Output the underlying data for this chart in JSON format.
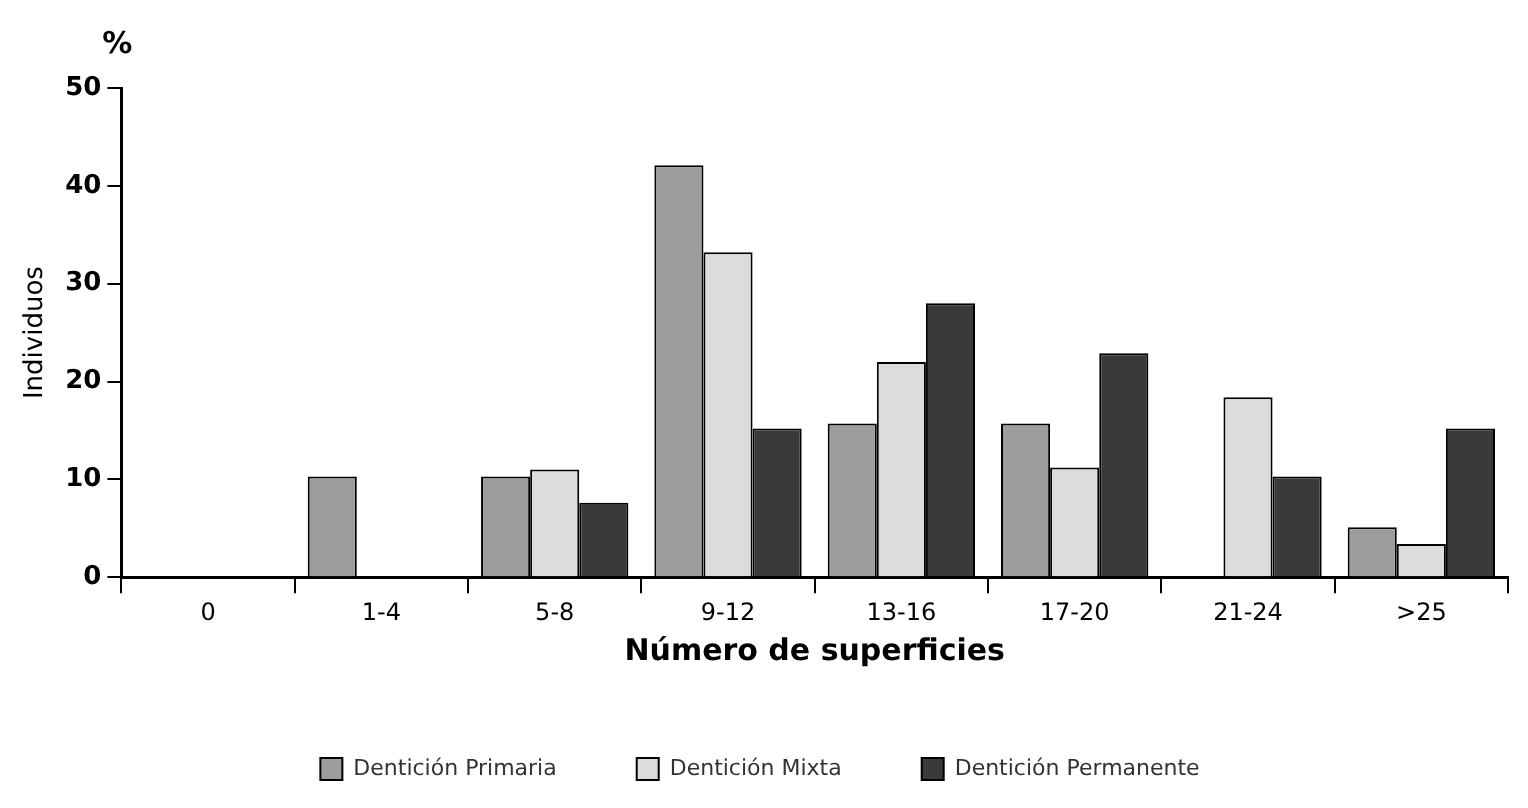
{
  "chart_data": {
    "type": "bar",
    "xlabel": "Número de superficies",
    "ylabel": "Individuos",
    "annotations": [
      "%"
    ],
    "categories": [
      "0",
      "1-4",
      "5-8",
      "9-12",
      "13-16",
      "17-20",
      "21-24",
      ">25"
    ],
    "series": [
      {
        "name": "Dentición Primaria",
        "color": "#9d9d9d",
        "values": [
          0,
          10.3,
          10.3,
          42.1,
          15.7,
          15.7,
          0,
          5.1
        ]
      },
      {
        "name": "Dentición Mixta",
        "color": "#dcdcdc",
        "values": [
          0,
          0,
          11.0,
          33.2,
          22.0,
          11.2,
          18.4,
          3.4
        ]
      },
      {
        "name": "Dentición Permanente",
        "color": "#3a3a3a",
        "values": [
          0,
          0,
          7.6,
          15.2,
          28.0,
          22.9,
          10.3,
          15.2
        ]
      }
    ],
    "ylim": [
      0,
      50
    ],
    "yticks": [
      0,
      10,
      20,
      30,
      40,
      50
    ],
    "grid": false,
    "legend": "bottom"
  }
}
